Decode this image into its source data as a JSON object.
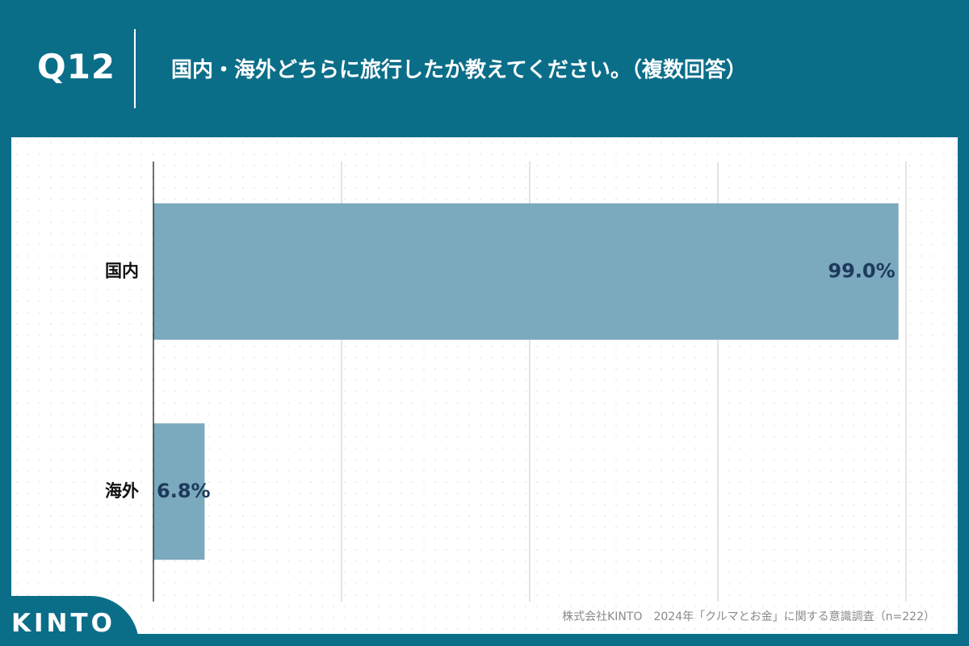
{
  "header": {
    "question_number": "Q12",
    "question_text": "国内・海外どちらに旅行したか教えてください。（複数回答）"
  },
  "chart_data": {
    "type": "bar",
    "orientation": "horizontal",
    "categories": [
      "国内",
      "海外"
    ],
    "values": [
      99.0,
      6.8
    ],
    "value_labels": [
      "99.0%",
      "6.8%"
    ],
    "xlim": [
      0,
      100
    ],
    "grid": true,
    "bar_color": "#7ba9bd",
    "label_color": "#1d3a5c"
  },
  "footer": {
    "source": "株式会社KINTO　2024年「クルマとお金」に関する意識調査（n=222）",
    "logo_text": "KINTO"
  },
  "colors": {
    "brand": "#0b6e89",
    "background": "#ffffff"
  }
}
